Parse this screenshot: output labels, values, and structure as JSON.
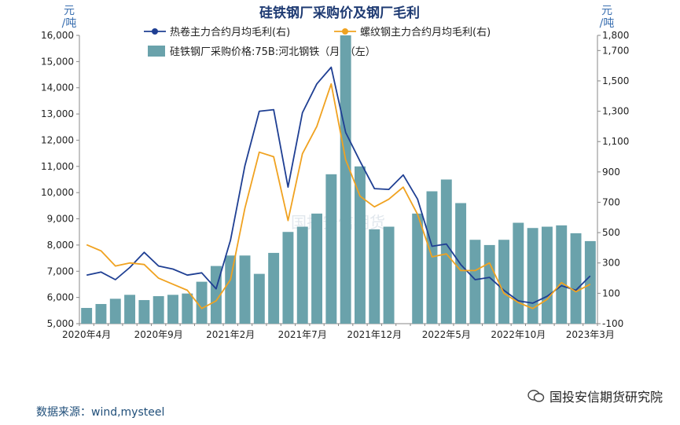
{
  "chart_data": {
    "type": "bar+line",
    "title": "硅铁钢厂采购价及钢厂毛利",
    "left_unit": "元\n/吨",
    "right_unit": "元\n/吨",
    "ylim_left": [
      5000,
      16000
    ],
    "yticks_left": [
      5000,
      6000,
      7000,
      8000,
      9000,
      10000,
      11000,
      12000,
      13000,
      14000,
      15000,
      16000
    ],
    "ytick_labels_left": [
      "5,000",
      "6,000",
      "7,000",
      "8,000",
      "9,000",
      "10,000",
      "11,000",
      "12,000",
      "13,000",
      "14,000",
      "15,000",
      "16,000"
    ],
    "ylim_right": [
      -100,
      1800
    ],
    "yticks_right": [
      -100,
      100,
      300,
      500,
      700,
      900,
      1100,
      1300,
      1500,
      1700,
      1800
    ],
    "ytick_labels_right": [
      "-100",
      "100",
      "300",
      "500",
      "700",
      "900",
      "1,100",
      "1,300",
      "1,500",
      "1,700",
      "1,800"
    ],
    "x_labels": [
      {
        "index": 0,
        "label": "2020年4月"
      },
      {
        "index": 5,
        "label": "2020年9月"
      },
      {
        "index": 10,
        "label": "2021年2月"
      },
      {
        "index": 15,
        "label": "2021年7月"
      },
      {
        "index": 20,
        "label": "2021年12月"
      },
      {
        "index": 25,
        "label": "2022年5月"
      },
      {
        "index": 30,
        "label": "2022年10月"
      },
      {
        "index": 35,
        "label": "2023年3月"
      }
    ],
    "n_points": 36,
    "bars": {
      "name": "硅铁钢厂采购价格:75B:河北钢铁（月）（左）",
      "color": "#6aa2ab",
      "values": [
        5600,
        5750,
        5950,
        6100,
        5900,
        6050,
        6100,
        6150,
        6600,
        7200,
        7600,
        7600,
        6900,
        7700,
        8500,
        8700,
        9200,
        10700,
        16000,
        11000,
        8600,
        8700,
        null,
        9200,
        10050,
        10500,
        9600,
        8200,
        8000,
        8200,
        8850,
        8650,
        8700,
        8750,
        8450,
        8150
      ]
    },
    "series": [
      {
        "name": "热卷主力合约月均毛利(右)",
        "color": "#1f3f93",
        "values": [
          220,
          240,
          190,
          270,
          370,
          280,
          260,
          220,
          235,
          130,
          450,
          940,
          1300,
          1310,
          800,
          1290,
          1480,
          1590,
          1160,
          970,
          790,
          785,
          880,
          720,
          410,
          425,
          290,
          190,
          205,
          120,
          50,
          35,
          80,
          150,
          120,
          215
        ]
      },
      {
        "name": "螺纹钢主力合约月均毛利(右)",
        "color": "#f0a220",
        "values": [
          420,
          380,
          280,
          300,
          290,
          200,
          160,
          120,
          0,
          50,
          190,
          660,
          1030,
          1000,
          580,
          1020,
          1200,
          1480,
          980,
          740,
          670,
          720,
          800,
          620,
          340,
          360,
          250,
          250,
          300,
          100,
          40,
          0,
          60,
          170,
          110,
          160
        ]
      }
    ]
  },
  "source": "数据来源：wind,mysteel",
  "watermark": {
    "center_text": "国投安信期货",
    "brand": "国投安信期货研究院"
  }
}
